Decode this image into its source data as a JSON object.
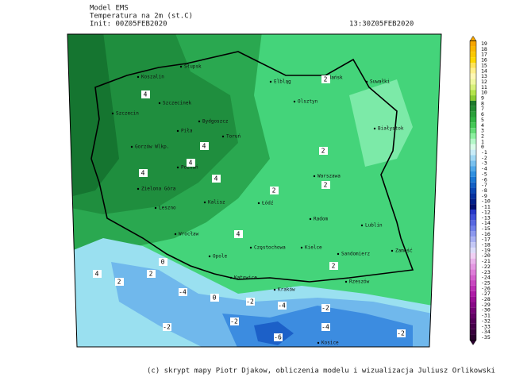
{
  "header": {
    "model": "Model EMS",
    "variable": "Temperatura na 2m (st.C)",
    "init": "Init: 00Z05FEB2020",
    "valid": "13:30Z05FEB2020"
  },
  "colorbar": {
    "labels": [
      19,
      18,
      17,
      16,
      15,
      14,
      13,
      12,
      11,
      10,
      9,
      8,
      7,
      6,
      5,
      4,
      3,
      2,
      1,
      0,
      -1,
      -2,
      -3,
      -4,
      -5,
      -6,
      -7,
      -8,
      -9,
      -10,
      -11,
      -12,
      -13,
      -14,
      -15,
      -16,
      -17,
      -18,
      -19,
      -20,
      -21,
      -22,
      -23,
      -24,
      -25,
      -26,
      -27,
      -28,
      -29,
      -30,
      -31,
      -32,
      -33,
      -34,
      -35
    ],
    "colors": [
      "#f7a600",
      "#f9b800",
      "#fbc800",
      "#fdd800",
      "#fee45a",
      "#fff08c",
      "#fff8b4",
      "#f0f8a0",
      "#d8f07a",
      "#b4e44a",
      "#8ccc32",
      "#1e7a2c",
      "#238c32",
      "#2aa03a",
      "#32b444",
      "#44c856",
      "#64dc78",
      "#8cf0a0",
      "#b4f8c8",
      "#d8fce8",
      "#c8ecf8",
      "#a0d8f4",
      "#78c0ee",
      "#50a8e8",
      "#3090e0",
      "#1c78d4",
      "#1460c4",
      "#0c48b4",
      "#0632a0",
      "#02208a",
      "#001070",
      "#2838c8",
      "#4050d8",
      "#5868e0",
      "#7080e8",
      "#8c98ee",
      "#a8b0f2",
      "#c4c8f6",
      "#dcdcfa",
      "#f0d0f4",
      "#eab4ec",
      "#e498e2",
      "#de7cd8",
      "#d460cc",
      "#c848c0",
      "#bc30b4",
      "#ae1ca6",
      "#9c1096",
      "#880886",
      "#760476",
      "#640266",
      "#540058",
      "#46004a",
      "#38003c",
      "#2a002e"
    ]
  },
  "cities": [
    "Słupsk",
    "Koszalin",
    "Szczecinek",
    "Szczecin",
    "Gorzów Wlkp.",
    "Piła",
    "Bydgoszcz",
    "Toruń",
    "Poznań",
    "Zielona Góra",
    "Leszno",
    "Wrocław",
    "Kalisz",
    "Łódź",
    "Opole",
    "Częstochowa",
    "Kielce",
    "Radom",
    "Warszawa",
    "Olsztyn",
    "Elbląg",
    "Gdańsk",
    "Suwałki",
    "Białystok",
    "Lublin",
    "Zamość",
    "Sandomierz",
    "Rzeszów",
    "Kraków",
    "Katowice",
    "Kosice"
  ],
  "contour_labels": [
    "4",
    "4",
    "4",
    "4",
    "4",
    "4",
    "4",
    "2",
    "2",
    "2",
    "2",
    "2",
    "2",
    "2",
    "0",
    "0",
    "-2",
    "-2",
    "-2",
    "-2",
    "-4",
    "-4",
    "-4",
    "-6",
    "-2"
  ],
  "footer": "(c) skrypt mapy Piotr Djakow, obliczenia modelu i wizualizacja Juliusz Orlikowski"
}
